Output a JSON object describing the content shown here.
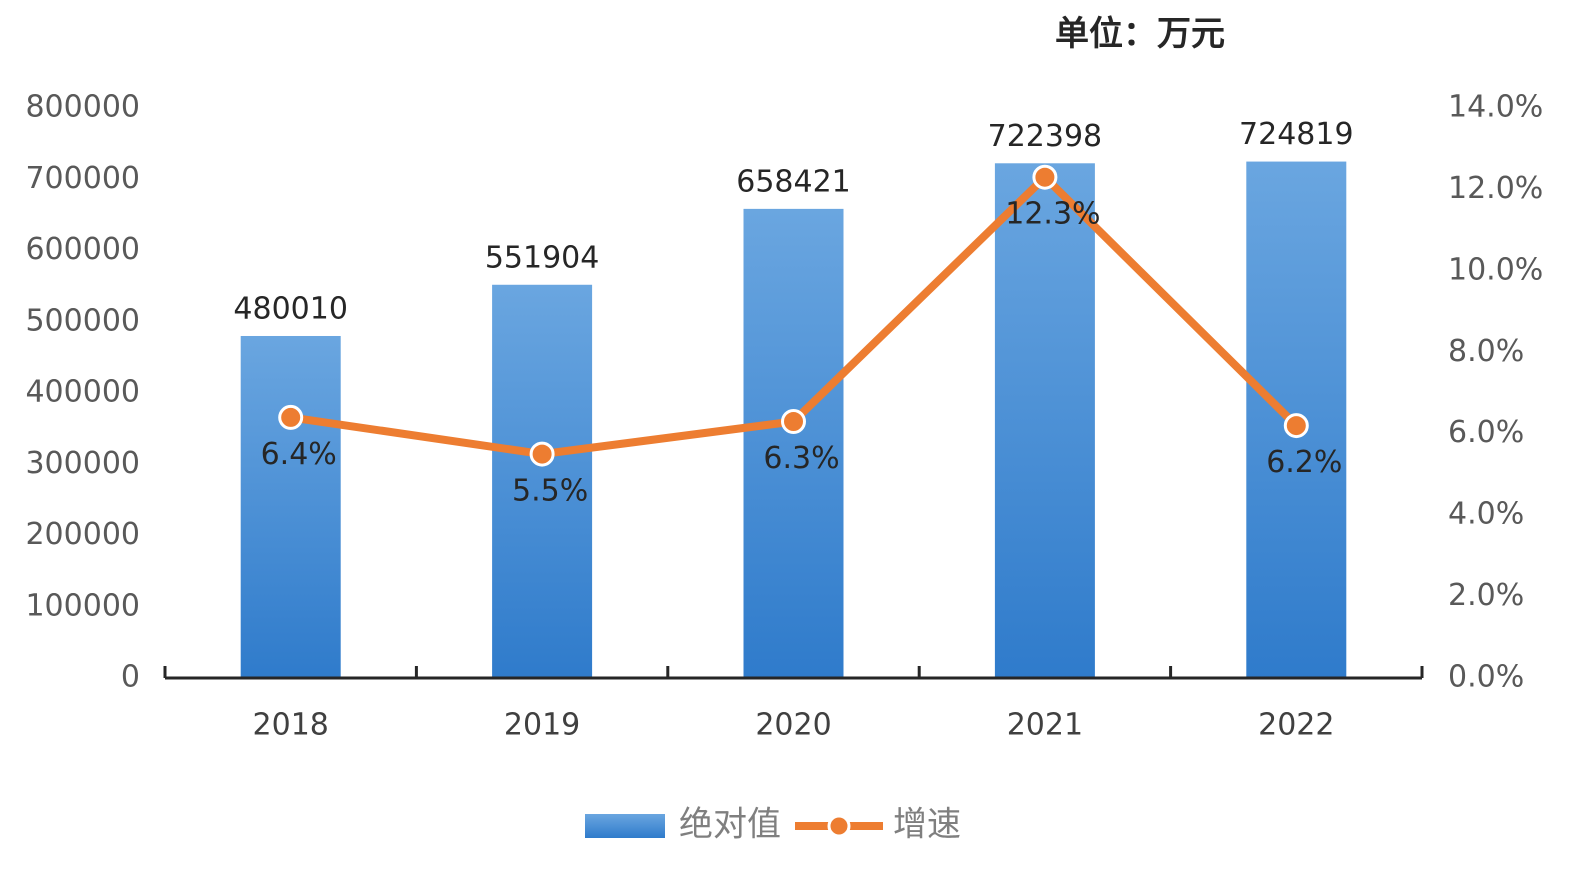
{
  "chart_data": {
    "type": "bar",
    "annotation": "单位：万元",
    "categories": [
      "2018",
      "2019",
      "2020",
      "2021",
      "2022"
    ],
    "series": [
      {
        "name": "绝对值",
        "type": "bar",
        "color": "#4a8fd6",
        "values": [
          480010,
          551904,
          658421,
          722398,
          724819
        ]
      },
      {
        "name": "增速",
        "type": "line",
        "axis": "y2",
        "color": "#ed7d31",
        "values": [
          6.4,
          5.5,
          6.3,
          12.3,
          6.2
        ],
        "value_labels": [
          "6.4%",
          "5.5%",
          "6.3%",
          "12.3%",
          "6.2%"
        ]
      }
    ],
    "ylim": [
      0,
      800000
    ],
    "yticks": [
      0,
      100000,
      200000,
      300000,
      400000,
      500000,
      600000,
      700000,
      800000
    ],
    "y2lim": [
      0,
      14
    ],
    "y2ticks": [
      {
        "value": 0,
        "label": "0.0%"
      },
      {
        "value": 2,
        "label": "2.0%"
      },
      {
        "value": 4,
        "label": "4.0%"
      },
      {
        "value": 6,
        "label": "6.0%"
      },
      {
        "value": 8,
        "label": "8.0%"
      },
      {
        "value": 10,
        "label": "10.0%"
      },
      {
        "value": 12,
        "label": "12.0%"
      },
      {
        "value": 14,
        "label": "14.0%"
      }
    ],
    "grid": false,
    "legend": "bottom"
  }
}
